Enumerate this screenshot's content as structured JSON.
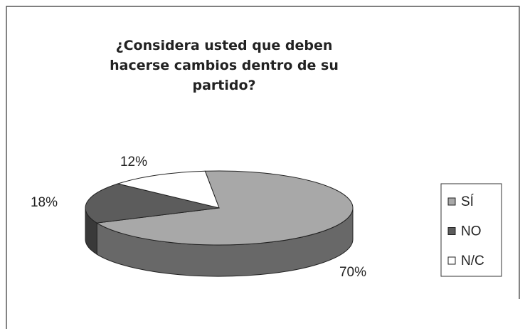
{
  "chart_data": {
    "type": "pie",
    "title": "¿Considera usted que deben hacerse cambios dentro de su partido?",
    "categories": [
      "SÍ",
      "NO",
      "N/C"
    ],
    "values": [
      70,
      18,
      12
    ],
    "value_labels": [
      "70%",
      "18%",
      "12%"
    ],
    "colors": [
      "#a8a8a8",
      "#5c5c5c",
      "#ffffff"
    ],
    "legend": "right"
  }
}
